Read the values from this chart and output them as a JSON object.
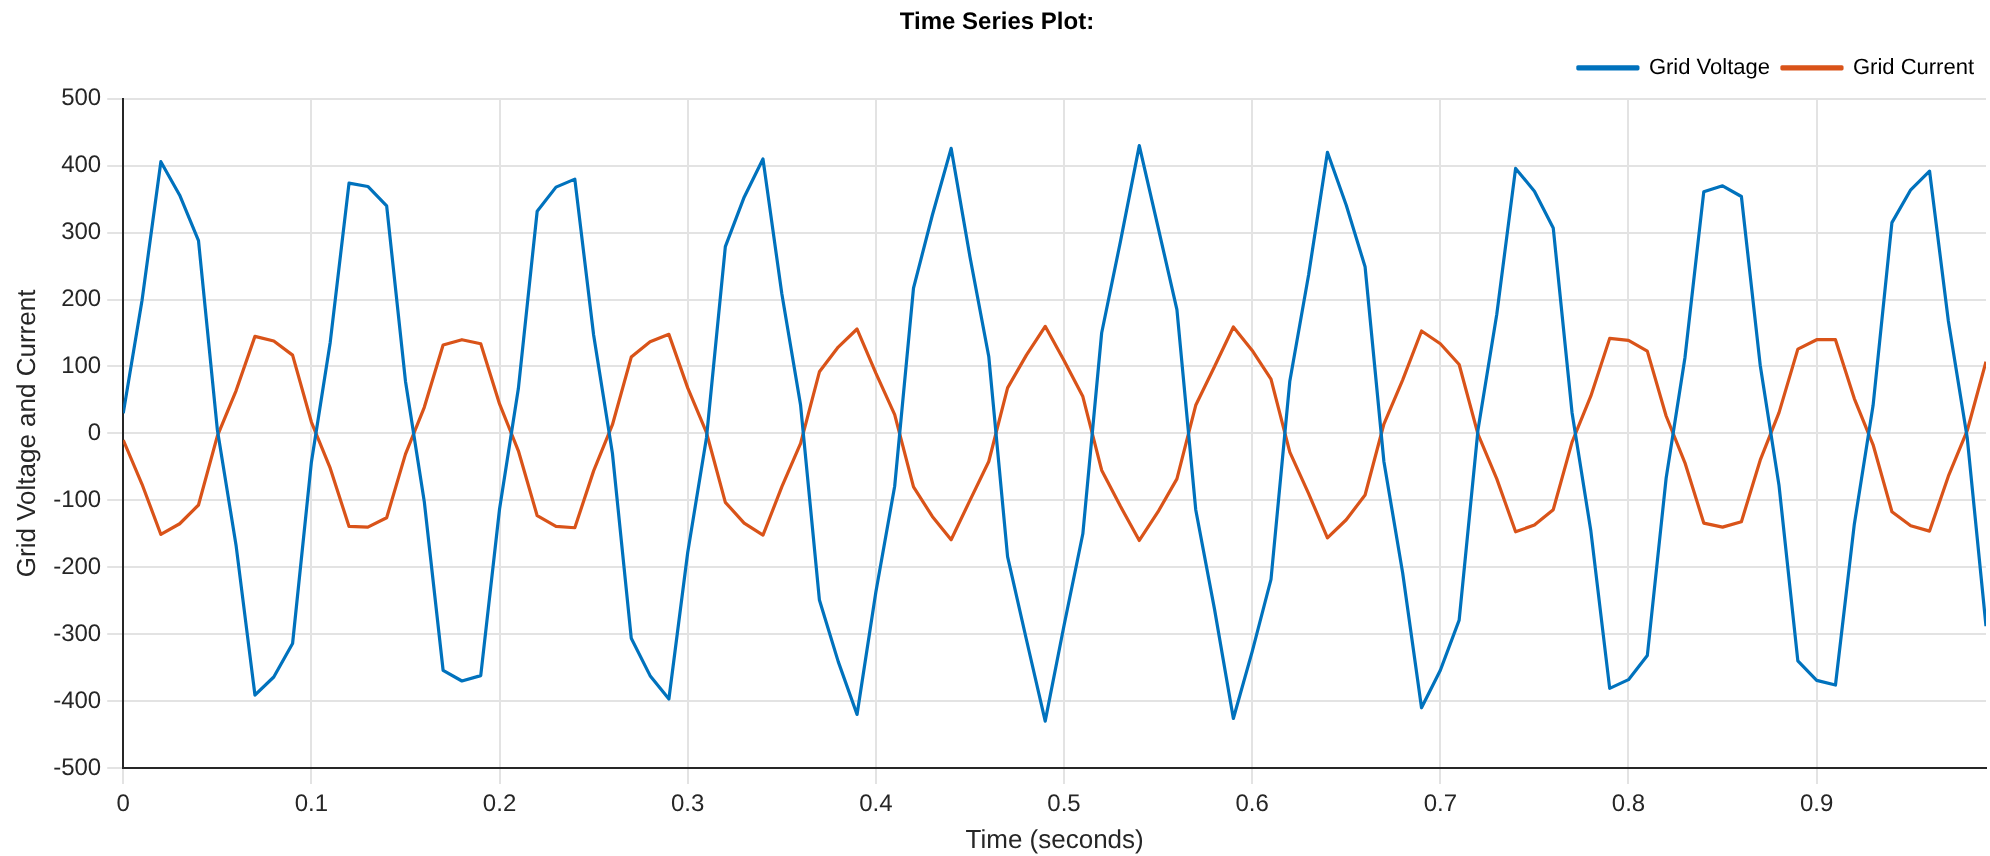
{
  "chart_data": {
    "type": "line",
    "title": "Time Series Plot:",
    "xlabel": "Time (seconds)",
    "ylabel": "Grid Voltage and Current",
    "x": [
      0,
      0.01,
      0.02,
      0.03,
      0.04,
      0.05,
      0.06,
      0.07,
      0.08,
      0.09,
      0.1,
      0.11,
      0.12,
      0.13,
      0.14,
      0.15,
      0.16,
      0.17,
      0.18,
      0.19,
      0.2,
      0.21,
      0.22,
      0.23,
      0.24,
      0.25,
      0.26,
      0.27,
      0.28,
      0.29,
      0.3,
      0.31,
      0.32,
      0.33,
      0.34,
      0.35,
      0.36,
      0.37,
      0.38,
      0.39,
      0.4,
      0.41,
      0.42,
      0.43,
      0.44,
      0.45,
      0.46,
      0.47,
      0.48,
      0.49,
      0.5,
      0.51,
      0.52,
      0.53,
      0.54,
      0.55,
      0.56,
      0.57,
      0.58,
      0.59,
      0.6,
      0.61,
      0.62,
      0.63,
      0.64,
      0.65,
      0.66,
      0.67,
      0.68,
      0.69,
      0.7,
      0.71,
      0.72,
      0.73,
      0.74,
      0.75,
      0.76,
      0.77,
      0.78,
      0.79,
      0.8,
      0.81,
      0.82,
      0.83,
      0.84,
      0.85,
      0.86,
      0.87,
      0.88,
      0.89,
      0.9,
      0.91,
      0.92,
      0.93,
      0.94,
      0.95,
      0.96,
      0.97,
      0.98,
      0.99
    ],
    "series": [
      {
        "name": "Grid Voltage",
        "color": "#0072bd",
        "values": [
          30,
          199,
          406,
          356,
          288,
          6,
          -168,
          -391,
          -364,
          -314,
          -43,
          136,
          374,
          369,
          340,
          78,
          -102,
          -354,
          -370,
          -362,
          -113,
          67,
          332,
          368,
          380,
          147,
          -30,
          -306,
          -362,
          -397,
          -178,
          -6,
          279,
          353,
          410,
          209,
          42,
          -249,
          -341,
          -420,
          -237,
          -79,
          217,
          326,
          426,
          264,
          115,
          -184,
          -308,
          -430,
          -287,
          -150,
          150,
          287,
          430,
          308,
          185,
          -114,
          -263,
          -426,
          -326,
          -218,
          78,
          237,
          420,
          341,
          249,
          -42,
          -209,
          -410,
          -354,
          -279,
          5,
          178,
          396,
          362,
          307,
          31,
          -146,
          -381,
          -368,
          -332,
          -67,
          113,
          361,
          370,
          354,
          102,
          -78,
          -340,
          -369,
          -376,
          -136,
          42,
          315,
          364,
          392,
          168,
          -6,
          -288
        ]
      },
      {
        "name": "Grid Current",
        "color": "#d95319",
        "values": [
          -10,
          -76,
          -151,
          -135,
          -107,
          -4,
          64,
          145,
          138,
          117,
          17,
          -52,
          -139,
          -140,
          -126,
          -31,
          39,
          132,
          140,
          134,
          44,
          -26,
          -123,
          -139,
          -141,
          -56,
          13,
          114,
          137,
          148,
          68,
          1,
          -103,
          -134,
          -152,
          -80,
          -15,
          92,
          129,
          156,
          90,
          28,
          -80,
          -124,
          -159,
          -100,
          -42,
          68,
          117,
          160,
          109,
          55,
          -55,
          -109,
          -160,
          -117,
          -68,
          42,
          100,
          159,
          124,
          81,
          -28,
          -90,
          -156,
          -129,
          -92,
          14,
          80,
          153,
          134,
          103,
          -1,
          -68,
          -147,
          -137,
          -114,
          -13,
          56,
          142,
          139,
          123,
          26,
          -44,
          -134,
          -140,
          -132,
          -40,
          31,
          126,
          140,
          140,
          52,
          -17,
          -117,
          -138,
          -146,
          -64,
          4,
          107
        ]
      }
    ],
    "xlim": [
      0,
      0.99
    ],
    "xticks": [
      0,
      0.1,
      0.2,
      0.3,
      0.4,
      0.5,
      0.6,
      0.7,
      0.8,
      0.9
    ],
    "ylim": [
      -500,
      500
    ],
    "yticks": [
      -500,
      -400,
      -300,
      -200,
      -100,
      0,
      100,
      200,
      300,
      400,
      500
    ],
    "grid": true,
    "legend": "top right",
    "marker": "none",
    "line_style": "solid"
  }
}
